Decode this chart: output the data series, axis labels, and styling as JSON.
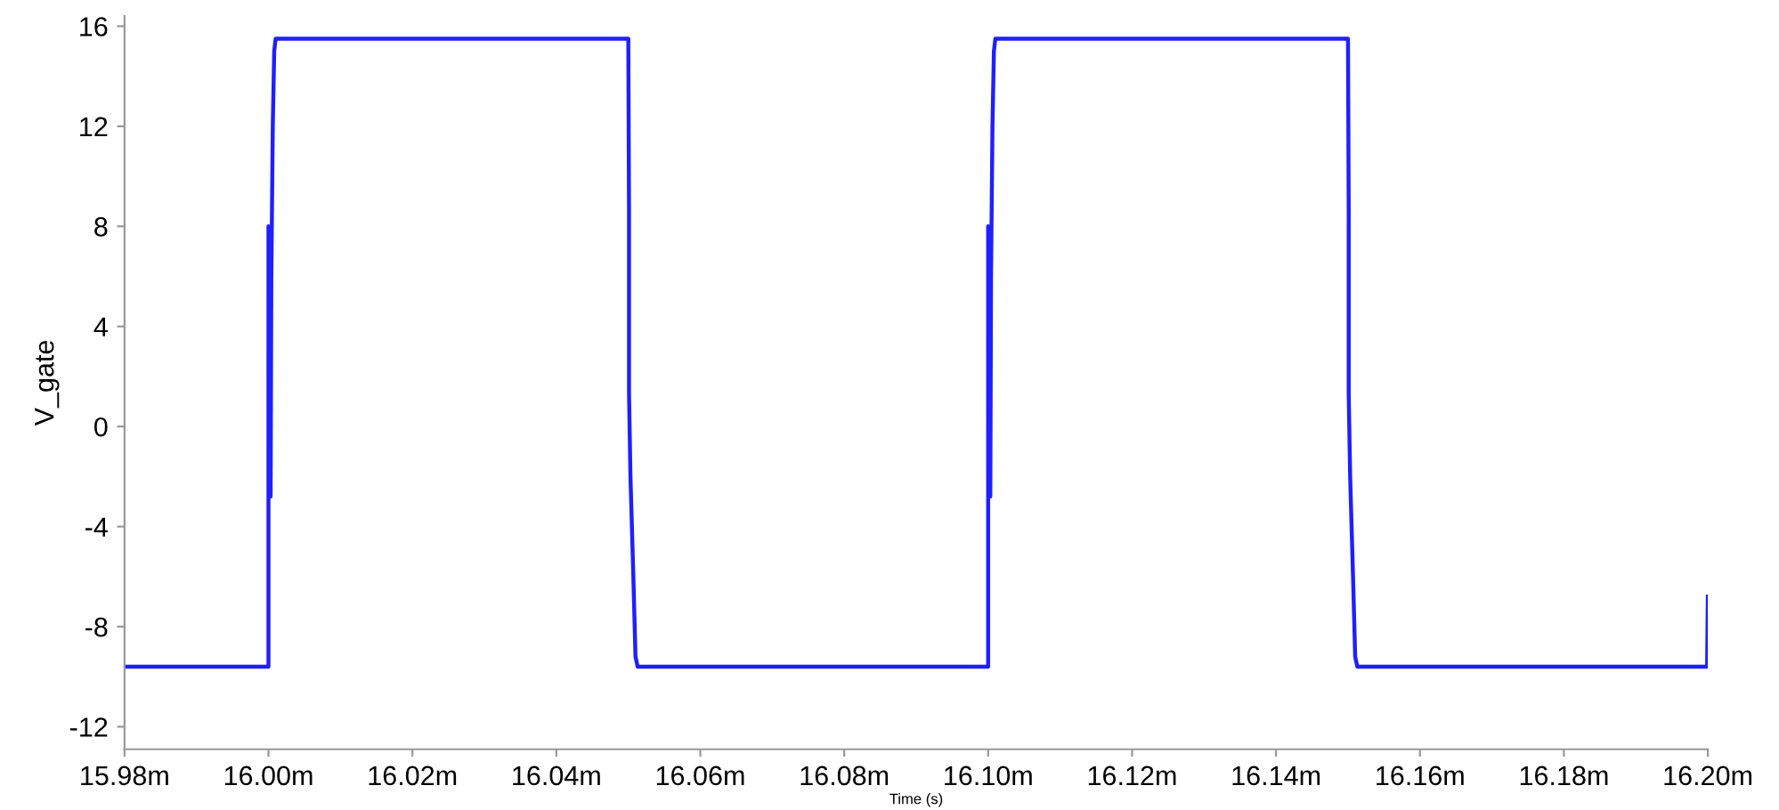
{
  "chart_data": {
    "type": "line",
    "xlabel": "Time (s)",
    "ylabel": "V_gate",
    "x": [
      15.98,
      16.0,
      16.0,
      16.0003,
      16.0004,
      16.0006,
      16.0008,
      16.001,
      16.05,
      16.0501,
      16.0501,
      16.0503,
      16.0507,
      16.051,
      16.0513,
      16.1,
      16.1,
      16.1003,
      16.1004,
      16.1006,
      16.1008,
      16.101,
      16.15,
      16.1501,
      16.1501,
      16.1503,
      16.1507,
      16.151,
      16.1513,
      16.1999,
      16.2
    ],
    "series": [
      {
        "color": "#1f1fff",
        "values": [
          -9.6,
          -9.6,
          8.0,
          -2.8,
          6,
          12,
          15,
          15.5,
          15.5,
          8.7,
          1.3,
          -2,
          -6,
          -9.2,
          -9.6,
          -9.6,
          8.0,
          -2.8,
          6,
          12,
          15,
          15.5,
          15.5,
          8.7,
          1.3,
          -2,
          -6,
          -9.2,
          -9.6,
          -9.6,
          -6.8
        ]
      }
    ],
    "xlim": [
      15.98,
      16.2
    ],
    "ylim": [
      -12.9,
      16.4
    ],
    "xticks": [
      {
        "value": 15.98,
        "label": "15.98m"
      },
      {
        "value": 16.0,
        "label": "16.00m"
      },
      {
        "value": 16.02,
        "label": "16.02m"
      },
      {
        "value": 16.04,
        "label": "16.04m"
      },
      {
        "value": 16.06,
        "label": "16.06m"
      },
      {
        "value": 16.08,
        "label": "16.08m"
      },
      {
        "value": 16.1,
        "label": "16.10m"
      },
      {
        "value": 16.12,
        "label": "16.12m"
      },
      {
        "value": 16.14,
        "label": "16.14m"
      },
      {
        "value": 16.16,
        "label": "16.16m"
      },
      {
        "value": 16.18,
        "label": "16.18m"
      },
      {
        "value": 16.2,
        "label": "16.20m"
      }
    ],
    "yticks": [
      -12,
      -8,
      -4,
      0,
      4,
      8,
      12,
      16
    ],
    "grid": false,
    "legend": false,
    "marker": "none",
    "line_style": "solid"
  }
}
